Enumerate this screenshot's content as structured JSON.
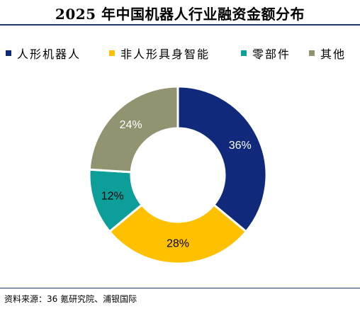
{
  "title": "2025 年中国机器人行业融资金额分布",
  "source": "资料来源：36 氪研究院、浦银国际",
  "colors": {
    "navy": "#10297a",
    "gold": "#ffc000",
    "teal": "#0e9e9a",
    "olive": "#929471",
    "rule": "#1f3864"
  },
  "chart_data": {
    "type": "pie",
    "donut": true,
    "title": "2025 年中国机器人行业融资金额分布",
    "legend_position": "top",
    "series": [
      {
        "name": "人形机器人",
        "value": 36,
        "label": "36%",
        "color": "#10297a",
        "label_color": "#ffffff"
      },
      {
        "name": "非人形具身智能",
        "value": 28,
        "label": "28%",
        "color": "#ffc000",
        "label_color": "#000000"
      },
      {
        "name": "零部件",
        "value": 12,
        "label": "12%",
        "color": "#0e9e9a",
        "label_color": "#000000"
      },
      {
        "name": "其他",
        "value": 24,
        "label": "24%",
        "color": "#929471",
        "label_color": "#ffffff"
      }
    ]
  }
}
